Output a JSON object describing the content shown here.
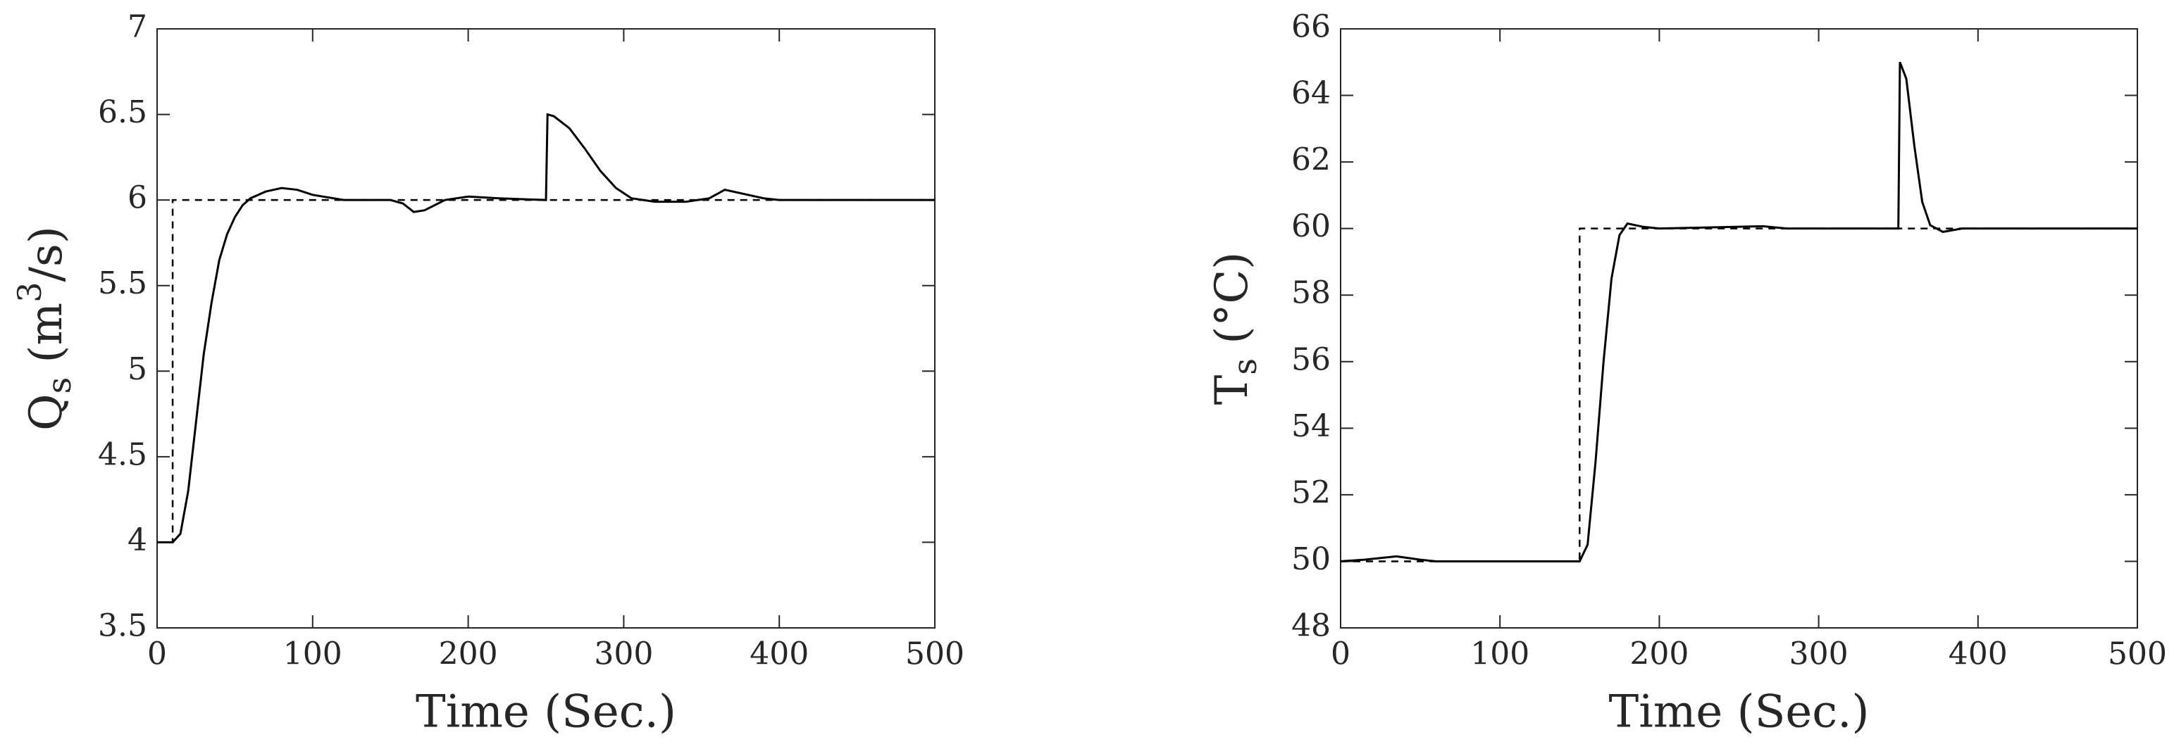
{
  "chart_data": [
    {
      "type": "line",
      "xlabel": "Time (Sec.)",
      "ylabel": [
        {
          "text": "Q"
        },
        {
          "sub": "s"
        },
        {
          "text": " (m"
        },
        {
          "sup": "3"
        },
        {
          "text": "/s)"
        }
      ],
      "xlim": [
        0,
        500
      ],
      "xticks": [
        0,
        100,
        200,
        300,
        400,
        500
      ],
      "ylim": [
        3.5,
        7
      ],
      "yticks": [
        3.5,
        4,
        4.5,
        5,
        5.5,
        6,
        6.5,
        7
      ],
      "series": [
        {
          "color": "#000000",
          "dashed": false,
          "x": [
            0,
            10,
            15,
            20,
            25,
            30,
            35,
            40,
            45,
            50,
            55,
            60,
            70,
            80,
            90,
            100,
            120,
            150,
            158,
            165,
            172,
            185,
            200,
            220,
            250,
            251,
            255,
            265,
            275,
            285,
            295,
            305,
            320,
            340,
            355,
            365,
            375,
            390,
            400,
            500
          ],
          "values": [
            4,
            4,
            4.05,
            4.3,
            4.7,
            5.1,
            5.4,
            5.65,
            5.8,
            5.9,
            5.97,
            6.01,
            6.05,
            6.07,
            6.06,
            6.03,
            6.0,
            6.0,
            5.98,
            5.93,
            5.94,
            6.0,
            6.02,
            6.01,
            6.0,
            6.5,
            6.49,
            6.42,
            6.3,
            6.17,
            6.07,
            6.01,
            5.99,
            5.99,
            6.01,
            6.06,
            6.04,
            6.01,
            6.0,
            6.0
          ]
        },
        {
          "color": "#000000",
          "dashed": true,
          "x": [
            0,
            10,
            10,
            500
          ],
          "values": [
            4,
            4,
            6,
            6
          ]
        }
      ]
    },
    {
      "type": "line",
      "xlabel": "Time (Sec.)",
      "ylabel": [
        {
          "text": "T"
        },
        {
          "sub": "s"
        },
        {
          "text": " (°C)"
        }
      ],
      "xlim": [
        0,
        500
      ],
      "xticks": [
        0,
        100,
        200,
        300,
        400,
        500
      ],
      "ylim": [
        48,
        66
      ],
      "yticks": [
        48,
        50,
        52,
        54,
        56,
        58,
        60,
        62,
        64,
        66
      ],
      "series": [
        {
          "color": "#000000",
          "dashed": false,
          "x": [
            0,
            15,
            35,
            50,
            60,
            150,
            155,
            160,
            165,
            170,
            175,
            180,
            190,
            200,
            265,
            280,
            350,
            351,
            355,
            360,
            365,
            370,
            378,
            390,
            500
          ],
          "values": [
            50,
            50.05,
            50.15,
            50.05,
            50,
            50,
            50.5,
            53,
            56,
            58.5,
            59.8,
            60.15,
            60.05,
            60,
            60.07,
            60,
            60,
            65,
            64.5,
            62.5,
            60.8,
            60.1,
            59.9,
            60,
            60
          ]
        },
        {
          "color": "#000000",
          "dashed": true,
          "x": [
            0,
            150,
            150,
            500
          ],
          "values": [
            50,
            50,
            60,
            60
          ]
        }
      ]
    }
  ]
}
